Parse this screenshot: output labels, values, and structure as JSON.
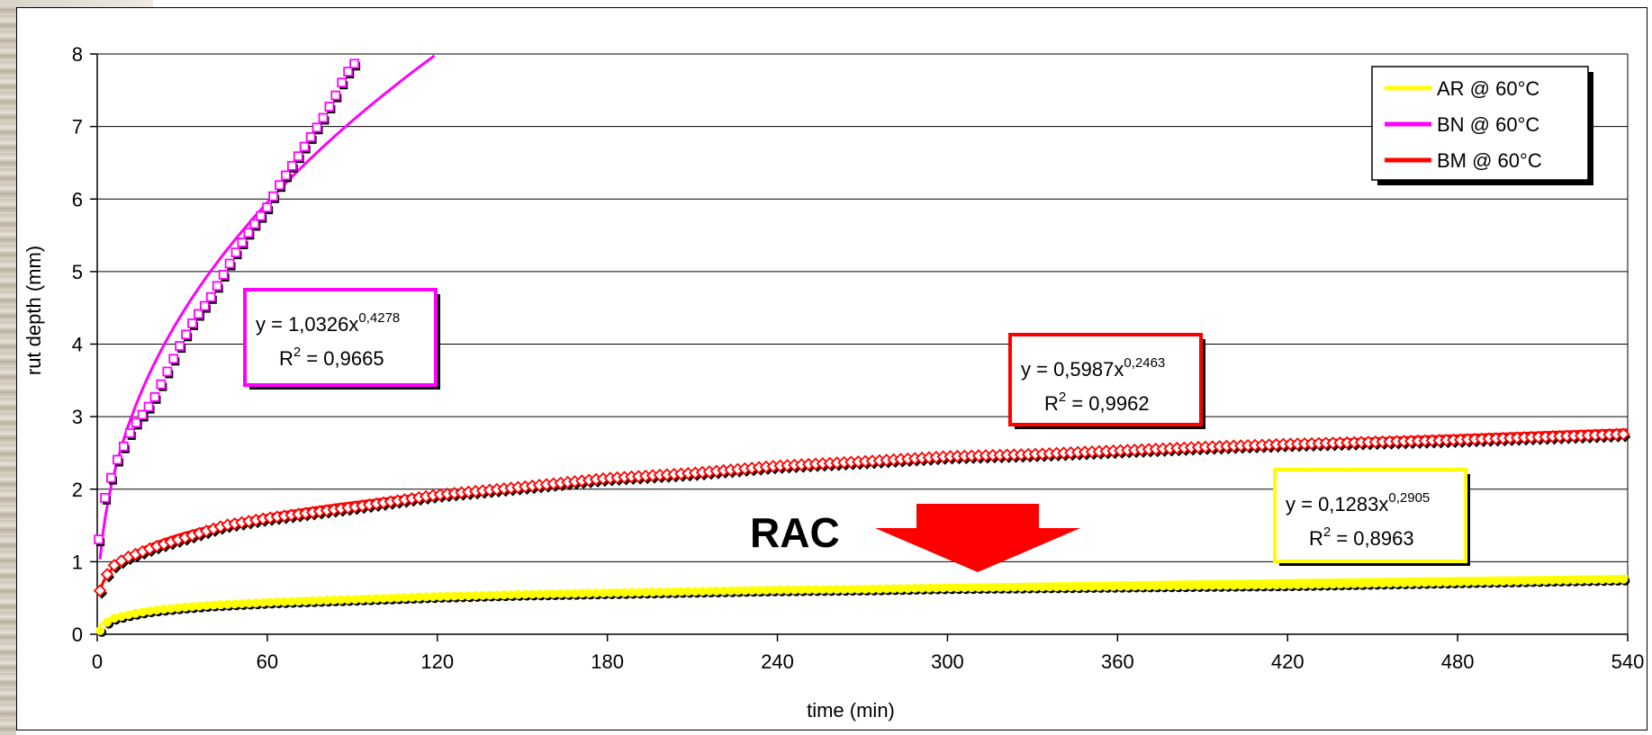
{
  "chart_data": {
    "type": "scatter",
    "xlabel": "time (min)",
    "ylabel": "rut depth (mm)",
    "xlim": [
      0,
      540
    ],
    "ylim": [
      0,
      8
    ],
    "xticks": [
      0,
      60,
      120,
      180,
      240,
      300,
      360,
      420,
      480,
      540
    ],
    "yticks": [
      0,
      1,
      2,
      3,
      4,
      5,
      6,
      7,
      8
    ],
    "grid": "horizontal",
    "legend_position": "top-right",
    "series": [
      {
        "name": "AR @ 60°C",
        "color": "#ffff00",
        "marker": "circle",
        "trendline": {
          "type": "power",
          "a": 0.1283,
          "b": 0.2905
        },
        "points": [
          [
            1,
            0.05
          ],
          [
            2,
            0.12
          ],
          [
            4,
            0.18
          ],
          [
            6,
            0.22
          ],
          [
            10,
            0.26
          ],
          [
            15,
            0.3
          ],
          [
            20,
            0.33
          ],
          [
            30,
            0.37
          ],
          [
            40,
            0.4
          ],
          [
            60,
            0.44
          ],
          [
            90,
            0.48
          ],
          [
            120,
            0.52
          ],
          [
            150,
            0.55
          ],
          [
            180,
            0.57
          ],
          [
            210,
            0.59
          ],
          [
            240,
            0.61
          ],
          [
            270,
            0.62
          ],
          [
            300,
            0.64
          ],
          [
            330,
            0.65
          ],
          [
            360,
            0.66
          ],
          [
            390,
            0.67
          ],
          [
            420,
            0.68
          ],
          [
            450,
            0.7
          ],
          [
            480,
            0.72
          ],
          [
            510,
            0.74
          ],
          [
            540,
            0.76
          ]
        ]
      },
      {
        "name": "BN @ 60°C",
        "color": "#ff00ff",
        "marker": "square",
        "trendline": {
          "type": "power",
          "a": 1.0326,
          "b": 0.4278
        },
        "points": [
          [
            1,
            1.3
          ],
          [
            2,
            1.6
          ],
          [
            3,
            1.85
          ],
          [
            5,
            2.1
          ],
          [
            7,
            2.35
          ],
          [
            10,
            2.6
          ],
          [
            13,
            2.85
          ],
          [
            17,
            3.05
          ],
          [
            20,
            3.2
          ],
          [
            25,
            3.6
          ],
          [
            30,
            4.0
          ],
          [
            35,
            4.35
          ],
          [
            40,
            4.6
          ],
          [
            45,
            4.95
          ],
          [
            50,
            5.3
          ],
          [
            55,
            5.6
          ],
          [
            60,
            5.85
          ],
          [
            65,
            6.2
          ],
          [
            70,
            6.5
          ],
          [
            75,
            6.8
          ],
          [
            80,
            7.1
          ],
          [
            85,
            7.45
          ],
          [
            88,
            7.7
          ],
          [
            92,
            7.9
          ]
        ]
      },
      {
        "name": "BM @ 60°C",
        "color": "#ff0000",
        "marker": "diamond",
        "trendline": {
          "type": "power",
          "a": 0.5987,
          "b": 0.2463
        },
        "points": [
          [
            1,
            0.6
          ],
          [
            3,
            0.8
          ],
          [
            6,
            0.95
          ],
          [
            10,
            1.05
          ],
          [
            20,
            1.2
          ],
          [
            30,
            1.32
          ],
          [
            45,
            1.5
          ],
          [
            60,
            1.6
          ],
          [
            90,
            1.75
          ],
          [
            120,
            1.92
          ],
          [
            150,
            2.03
          ],
          [
            180,
            2.15
          ],
          [
            210,
            2.22
          ],
          [
            240,
            2.32
          ],
          [
            270,
            2.38
          ],
          [
            300,
            2.45
          ],
          [
            330,
            2.48
          ],
          [
            360,
            2.53
          ],
          [
            390,
            2.58
          ],
          [
            420,
            2.62
          ],
          [
            450,
            2.65
          ],
          [
            480,
            2.68
          ],
          [
            510,
            2.72
          ],
          [
            540,
            2.76
          ]
        ]
      }
    ],
    "annotations": [
      {
        "series": "BN @ 60°C",
        "eq_prefix": "y = 1,0326x",
        "eq_exp": "0,4278",
        "r2": "R",
        "r2_exp": "2",
        "r2_value": " = 0,9665",
        "color": "#ff00ff"
      },
      {
        "series": "BM @ 60°C",
        "eq_prefix": "y = 0,5987x",
        "eq_exp": "0,2463",
        "r2": "R",
        "r2_exp": "2",
        "r2_value": " = 0,9962",
        "color": "#ff0000"
      },
      {
        "series": "AR @ 60°C",
        "eq_prefix": "y = 0,1283x",
        "eq_exp": "0,2905",
        "r2": "R",
        "r2_exp": "2",
        "r2_value": " = 0,8963",
        "color": "#ffff00"
      }
    ],
    "callout": {
      "label": "RAC",
      "arrow_color": "#ff0000"
    }
  }
}
